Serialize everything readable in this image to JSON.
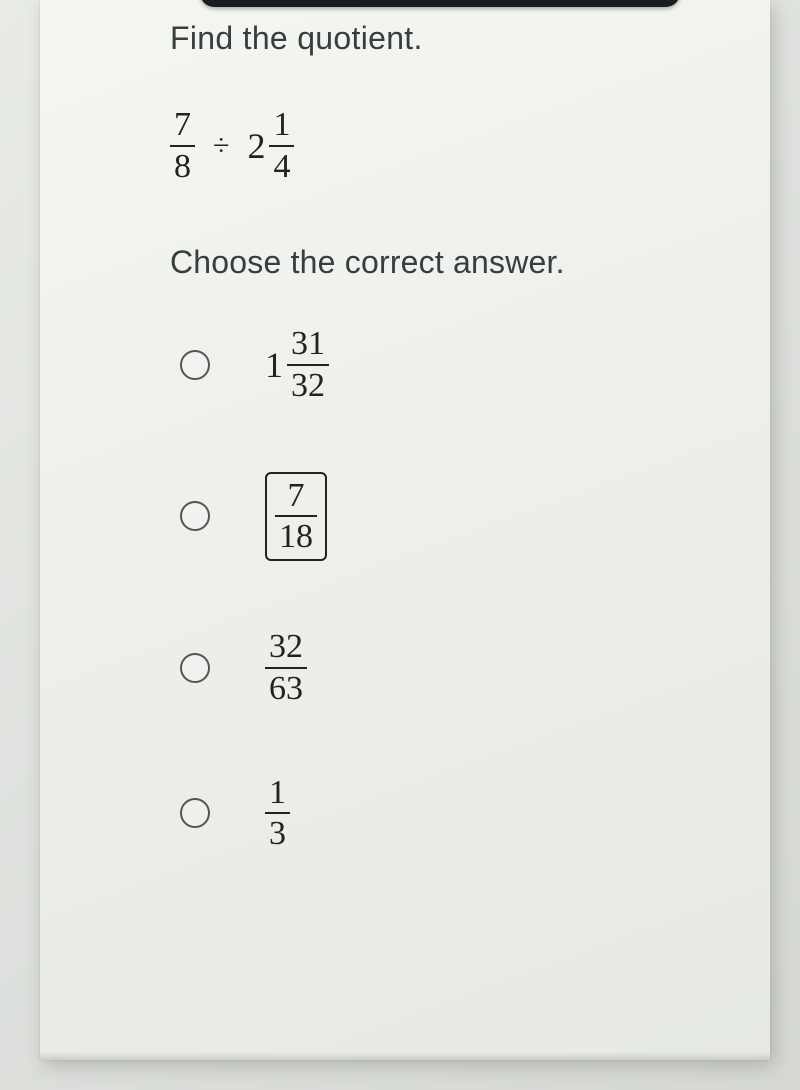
{
  "prompt": "Find the quotient.",
  "expression": {
    "left": {
      "num": "7",
      "den": "8"
    },
    "operator": "÷",
    "right": {
      "whole": "2",
      "num": "1",
      "den": "4"
    }
  },
  "choose": "Choose the correct answer.",
  "options": [
    {
      "type": "mixed",
      "whole": "1",
      "num": "31",
      "den": "32",
      "boxed": false
    },
    {
      "type": "fraction",
      "num": "7",
      "den": "18",
      "boxed": true
    },
    {
      "type": "fraction",
      "num": "32",
      "den": "63",
      "boxed": false
    },
    {
      "type": "fraction",
      "num": "1",
      "den": "3",
      "boxed": false
    }
  ],
  "colors": {
    "text": "#3a3d40",
    "math": "#222222",
    "radio_border": "#555555",
    "page_bg": "#eef0ec",
    "body_bg": "#dde0dc",
    "bar": "#1a1d20"
  },
  "fontsize": {
    "prompt": 32,
    "math": 34
  }
}
